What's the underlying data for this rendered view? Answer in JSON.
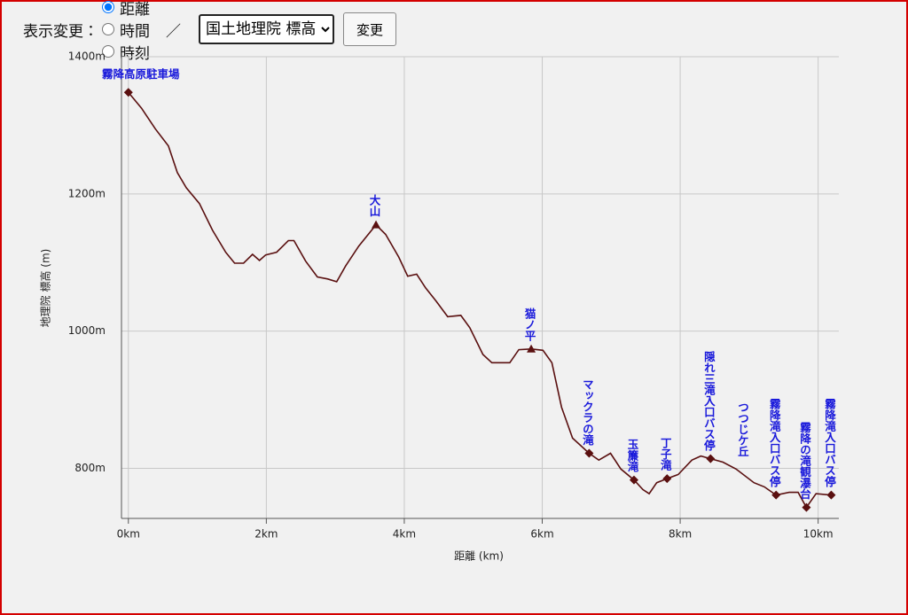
{
  "controls": {
    "label": "表示変更：",
    "options": [
      "距離",
      "時間",
      "時刻"
    ],
    "selected": 0,
    "separator": "／",
    "select": "国土地理院 標高",
    "button": "変更"
  },
  "chart_data": {
    "type": "line",
    "x_label": "距離 (km)",
    "y_label": "地理院 標高 (m)",
    "x": [
      0,
      0.19,
      0.39,
      0.58,
      0.71,
      0.84,
      1.03,
      1.22,
      1.41,
      1.54,
      1.67,
      1.8,
      1.9,
      1.99,
      2.15,
      2.32,
      2.4,
      2.57,
      2.74,
      2.89,
      3.02,
      3.15,
      3.34,
      3.59,
      3.73,
      3.92,
      4.05,
      4.18,
      4.31,
      4.46,
      4.63,
      4.82,
      4.95,
      5.14,
      5.27,
      5.53,
      5.66,
      5.84,
      6.01,
      6.14,
      6.28,
      6.44,
      6.68,
      6.82,
      6.99,
      7.14,
      7.33,
      7.46,
      7.55,
      7.66,
      7.81,
      7.97,
      8.17,
      8.3,
      8.44,
      8.62,
      8.81,
      9.07,
      9.22,
      9.39,
      9.58,
      9.71,
      9.83,
      9.97,
      10.19
    ],
    "values": [
      1348,
      1325,
      1295,
      1270,
      1231,
      1209,
      1186,
      1147,
      1115,
      1099,
      1099,
      1112,
      1103,
      1111,
      1115,
      1132,
      1132,
      1102,
      1079,
      1076,
      1072,
      1095,
      1124,
      1155,
      1141,
      1108,
      1080,
      1083,
      1063,
      1044,
      1021,
      1023,
      1005,
      966,
      954,
      954,
      973,
      974,
      972,
      954,
      889,
      844,
      822,
      812,
      822,
      799,
      783,
      769,
      763,
      779,
      785,
      791,
      812,
      818,
      814,
      809,
      799,
      779,
      773,
      761,
      765,
      765,
      743,
      763,
      761
    ],
    "color": "#5a1010",
    "points": [
      {
        "label": "霧降高原駐車場",
        "x": 0,
        "y": 1348,
        "marker": "diamond",
        "orientation": "horizontal"
      },
      {
        "label": "大山",
        "x": 3.59,
        "y": 1155,
        "marker": "triangle",
        "orientation": "vertical"
      },
      {
        "label": "猫ノ平",
        "x": 5.84,
        "y": 974,
        "marker": "triangle",
        "orientation": "vertical"
      },
      {
        "label": "マックラの滝",
        "x": 6.68,
        "y": 822,
        "marker": "diamond",
        "orientation": "vertical"
      },
      {
        "label": "玉簾滝",
        "x": 7.33,
        "y": 783,
        "marker": "diamond",
        "orientation": "vertical"
      },
      {
        "label": "丁子滝",
        "x": 7.81,
        "y": 785,
        "marker": "diamond",
        "orientation": "vertical"
      },
      {
        "label": "隠れ三滝入口バス停",
        "x": 8.44,
        "y": 814,
        "marker": "diamond",
        "orientation": "vertical"
      },
      {
        "label": "つつじケ丘",
        "x": 8.93,
        "y": 805,
        "marker": "none",
        "orientation": "vertical"
      },
      {
        "label": "霧降滝入口バス停",
        "x": 9.39,
        "y": 761,
        "marker": "diamond",
        "orientation": "vertical"
      },
      {
        "label": "霧降の滝観瀑台",
        "x": 9.83,
        "y": 743,
        "marker": "diamond",
        "orientation": "vertical"
      },
      {
        "label": "霧降滝入口バス停",
        "x": 10.19,
        "y": 761,
        "marker": "diamond",
        "orientation": "vertical"
      }
    ],
    "xlim": [
      -0.1,
      10.3
    ],
    "ylim": [
      727,
      1400
    ],
    "xticks": [
      {
        "value": 0,
        "label": "0km"
      },
      {
        "value": 2,
        "label": "2km"
      },
      {
        "value": 4,
        "label": "4km"
      },
      {
        "value": 6,
        "label": "6km"
      },
      {
        "value": 8,
        "label": "8km"
      },
      {
        "value": 10,
        "label": "10km"
      }
    ],
    "yticks": [
      {
        "value": 800,
        "label": "800m"
      },
      {
        "value": 1000,
        "label": "1000m"
      },
      {
        "value": 1200,
        "label": "1200m"
      },
      {
        "value": 1400,
        "label": "1400m"
      }
    ],
    "grid": true
  }
}
